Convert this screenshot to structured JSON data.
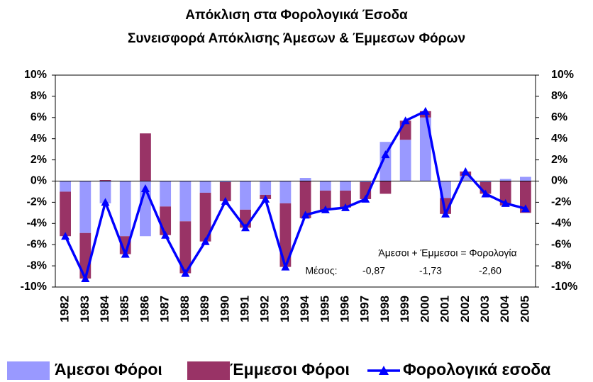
{
  "chart_data": {
    "type": "bar",
    "stacked": true,
    "title": "Απόκλιση στα Φορολογικά Έσοδα",
    "subtitle": "Συνεισφορά Απόκλισης Άμεσων & Έμμεσων Φόρων",
    "categories": [
      "1982",
      "1983",
      "1984",
      "1985",
      "1986",
      "1987",
      "1988",
      "1989",
      "1990",
      "1991",
      "1992",
      "1993",
      "1994",
      "1995",
      "1996",
      "1997",
      "1998",
      "1999",
      "2000",
      "2001",
      "2002",
      "2003",
      "2004",
      "2005"
    ],
    "series": [
      {
        "name": "Άμεσοι Φόροι",
        "color": "#9999ff",
        "type": "bar",
        "values": [
          -1.0,
          -4.9,
          -2.1,
          -5.2,
          -5.2,
          -2.4,
          -3.8,
          -1.1,
          -0.1,
          -2.7,
          -1.3,
          -2.1,
          0.3,
          -0.9,
          -0.9,
          -0.1,
          3.7,
          3.9,
          6.0,
          -1.6,
          0.5,
          -0.1,
          0.2,
          0.4
        ]
      },
      {
        "name": "Έμμεσοι Φόροι",
        "color": "#993366",
        "type": "bar",
        "values": [
          -4.2,
          -4.3,
          0.1,
          -1.7,
          4.5,
          -2.7,
          -4.9,
          -4.6,
          -1.8,
          -1.7,
          -0.4,
          -6.0,
          -3.5,
          -1.8,
          -1.6,
          -1.6,
          -1.2,
          1.8,
          0.6,
          -1.5,
          0.4,
          -1.1,
          -2.3,
          -3.0
        ]
      },
      {
        "name": "Φορολογικά εσοδα",
        "color": "#0000ff",
        "type": "line",
        "values": [
          -5.2,
          -9.2,
          -2.0,
          -6.9,
          -0.7,
          -5.1,
          -8.7,
          -5.7,
          -1.9,
          -4.4,
          -1.7,
          -8.1,
          -3.2,
          -2.7,
          -2.5,
          -1.7,
          2.5,
          5.7,
          6.6,
          -3.1,
          0.9,
          -1.2,
          -2.1,
          -2.6
        ]
      }
    ],
    "annotations": [
      "Άμεσοι + Έμμεσοι = Φορολογία",
      "Μέσος:",
      "-0,87",
      "-1,73",
      "-2,60"
    ],
    "ylim": [
      -10,
      10
    ],
    "yticks": [
      {
        "value": -10,
        "label": "-10%"
      },
      {
        "value": -8,
        "label": "-8%"
      },
      {
        "value": -6,
        "label": "-6%"
      },
      {
        "value": -4,
        "label": "-4%"
      },
      {
        "value": -2,
        "label": "-2%"
      },
      {
        "value": 0,
        "label": "0%"
      },
      {
        "value": 2,
        "label": "2%"
      },
      {
        "value": 4,
        "label": "4%"
      },
      {
        "value": 6,
        "label": "6%"
      },
      {
        "value": 8,
        "label": "8%"
      },
      {
        "value": 10,
        "label": "10%"
      }
    ],
    "y2lim": [
      -10,
      10
    ],
    "y2ticks": [
      {
        "value": -10,
        "label": "-10%"
      },
      {
        "value": -8,
        "label": "-8%"
      },
      {
        "value": -6,
        "label": "-6%"
      },
      {
        "value": -4,
        "label": "-4%"
      },
      {
        "value": -2,
        "label": "-2%"
      },
      {
        "value": 0,
        "label": "0%"
      },
      {
        "value": 2,
        "label": "2%"
      },
      {
        "value": 4,
        "label": "4%"
      },
      {
        "value": 6,
        "label": "6%"
      },
      {
        "value": 8,
        "label": "8%"
      },
      {
        "value": 10,
        "label": "10%"
      }
    ],
    "grid": false,
    "legend": "bottom"
  }
}
